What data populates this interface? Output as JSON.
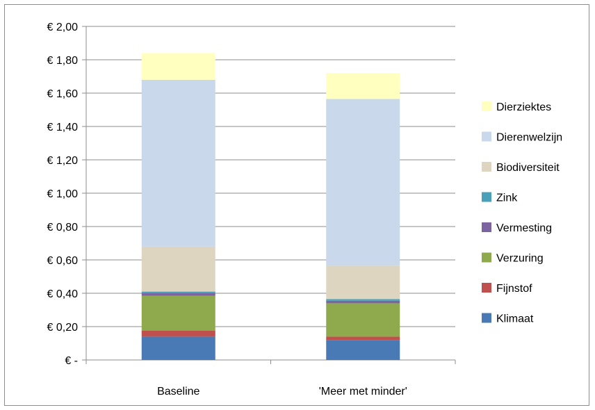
{
  "chart_data": {
    "type": "bar",
    "stacked": true,
    "title": "",
    "xlabel": "",
    "ylabel": "",
    "ylim": [
      0,
      2.0
    ],
    "y_ticks": [
      0,
      0.2,
      0.4,
      0.6,
      0.8,
      1.0,
      1.2,
      1.4,
      1.6,
      1.8,
      2.0
    ],
    "y_tick_labels": [
      "€ -",
      "€ 0,20",
      "€ 0,40",
      "€ 0,60",
      "€ 0,80",
      "€ 1,00",
      "€ 1,20",
      "€ 1,40",
      "€ 1,60",
      "€ 1,80",
      "€ 2,00"
    ],
    "grid": true,
    "legend_position": "right",
    "categories": [
      "Baseline",
      "'Meer met minder'"
    ],
    "series": [
      {
        "name": "Klimaat",
        "color": "#4a7ab5",
        "values": [
          0.14,
          0.12
        ]
      },
      {
        "name": "Fijnstof",
        "color": "#c0504d",
        "values": [
          0.035,
          0.02
        ]
      },
      {
        "name": "Verzuring",
        "color": "#8eaa4c",
        "values": [
          0.21,
          0.2
        ]
      },
      {
        "name": "Vermesting",
        "color": "#7b64a0",
        "values": [
          0.015,
          0.015
        ]
      },
      {
        "name": "Zink",
        "color": "#4aa0b8",
        "values": [
          0.01,
          0.01
        ]
      },
      {
        "name": "Biodiversiteit",
        "color": "#ddd5c0",
        "values": [
          0.27,
          0.2
        ]
      },
      {
        "name": "Dierenwelzijn",
        "color": "#c9d8eb",
        "values": [
          1.0,
          1.0
        ]
      },
      {
        "name": "Dierziektes",
        "color": "#ffffc0",
        "values": [
          0.16,
          0.155
        ]
      }
    ]
  }
}
